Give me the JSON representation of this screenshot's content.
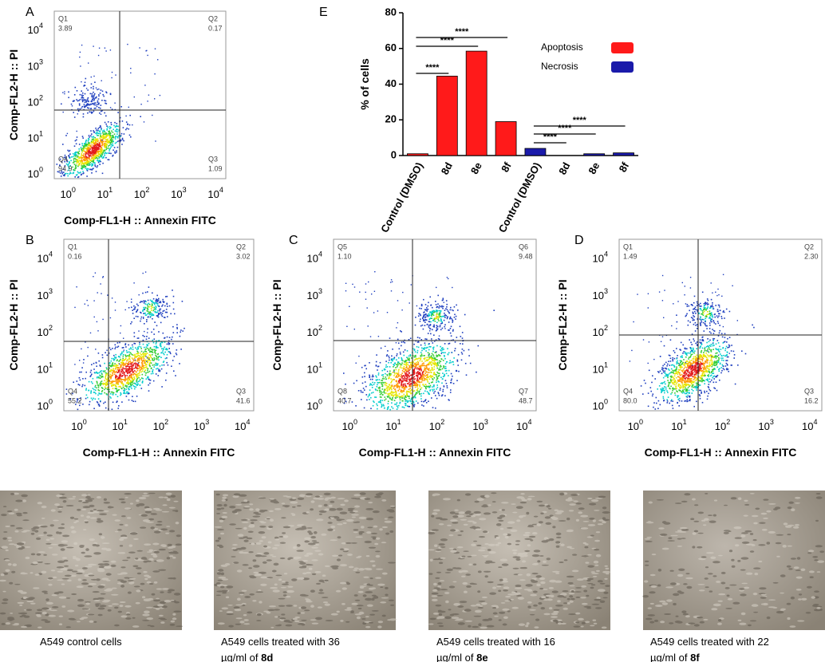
{
  "flow_panels": [
    {
      "letter": "A",
      "y_label": "Comp-FL2-H :: PI",
      "x_label": "Comp-FL1-H :: Annexin FITC",
      "quadrants": [
        {
          "name": "Q1",
          "value": "3.89"
        },
        {
          "name": "Q2",
          "value": "0.17"
        },
        {
          "name": "Q3",
          "value": "1.09"
        },
        {
          "name": "Q4",
          "value": "94.9"
        }
      ]
    },
    {
      "letter": "B",
      "y_label": "Comp-FL2-H :: PI",
      "x_label": "Comp-FL1-H :: Annexin FITC",
      "quadrants": [
        {
          "name": "Q1",
          "value": "0.16"
        },
        {
          "name": "Q2",
          "value": "3.02"
        },
        {
          "name": "Q3",
          "value": "41.6"
        },
        {
          "name": "Q4",
          "value": "55.2"
        }
      ]
    },
    {
      "letter": "C",
      "y_label": "Comp-FL2-H :: PI",
      "x_label": "Comp-FL1-H :: Annexin FITC",
      "quadrants": [
        {
          "name": "Q5",
          "value": "1.10"
        },
        {
          "name": "Q6",
          "value": "9.48"
        },
        {
          "name": "Q7",
          "value": "48.7"
        },
        {
          "name": "Q8",
          "value": "40.7"
        }
      ]
    },
    {
      "letter": "D",
      "y_label": "Comp-FL2-H :: PI",
      "x_label": "Comp-FL1-H :: Annexin FITC",
      "quadrants": [
        {
          "name": "Q1",
          "value": "1.49"
        },
        {
          "name": "Q2",
          "value": "2.30"
        },
        {
          "name": "Q3",
          "value": "16.2"
        },
        {
          "name": "Q4",
          "value": "80.0"
        }
      ]
    }
  ],
  "log_ticks": [
    {
      "base": "10",
      "exp": "0"
    },
    {
      "base": "10",
      "exp": "1"
    },
    {
      "base": "10",
      "exp": "2"
    },
    {
      "base": "10",
      "exp": "3"
    },
    {
      "base": "10",
      "exp": "4"
    }
  ],
  "chart_data": {
    "type": "bar",
    "letter": "E",
    "y_label": "% of cells",
    "categories": [
      "Control (DMSO)",
      "8d",
      "8e",
      "8f",
      "Control (DMSO)",
      "8d",
      "8e",
      "8f"
    ],
    "series": [
      {
        "name": "Apoptosis",
        "color": "#ff1a1a",
        "values": [
          1,
          44.5,
          58.5,
          19,
          null,
          null,
          null,
          null
        ]
      },
      {
        "name": "Necrosis",
        "color": "#1a1aaa",
        "values": [
          null,
          null,
          null,
          null,
          4,
          0,
          1,
          1.5
        ]
      }
    ],
    "ylim": [
      0,
      80
    ],
    "yticks": [
      0,
      20,
      40,
      60,
      80
    ],
    "annotations": [
      "****",
      "****",
      "****",
      "****",
      "****",
      "****"
    ]
  },
  "micrographs": [
    {
      "lines": [
        "A549 control cells"
      ],
      "bold": null
    },
    {
      "lines": [
        "A549 cells treated with 36",
        "µg/ml of "
      ],
      "bold": "8d"
    },
    {
      "lines": [
        "A549 cells treated with 16",
        "µg/ml of "
      ],
      "bold": "8e"
    },
    {
      "lines": [
        "A549 cells treated with 22",
        "µg/ml of "
      ],
      "bold": "8f"
    }
  ]
}
